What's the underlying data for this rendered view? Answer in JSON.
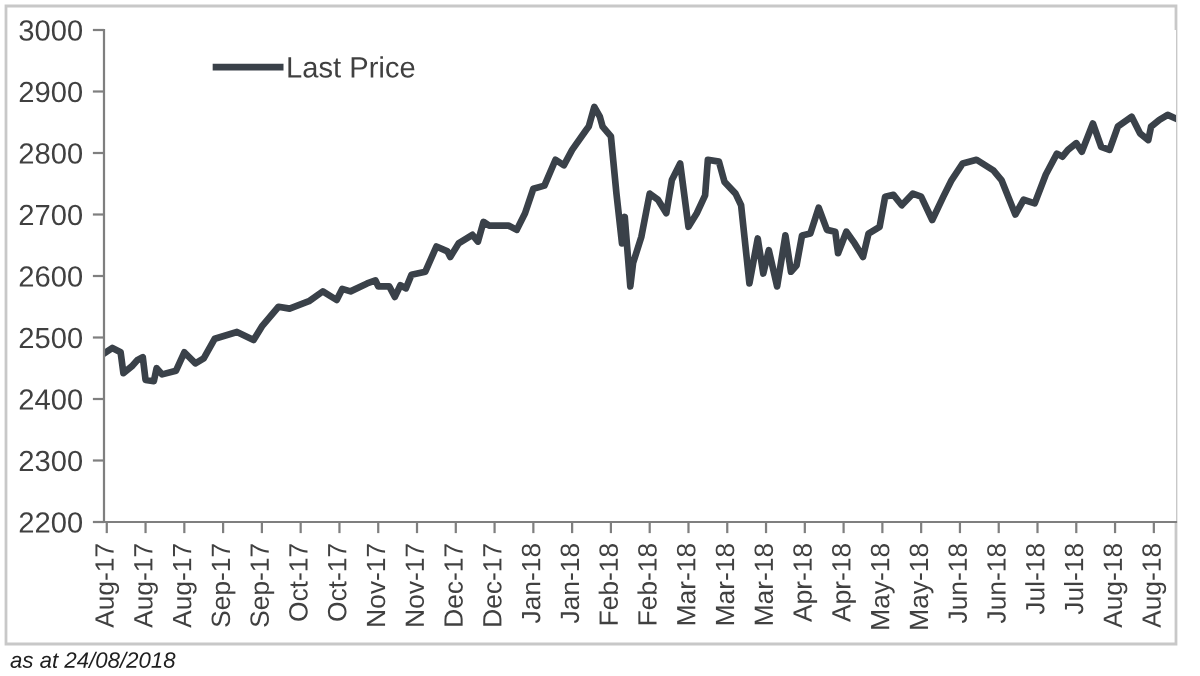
{
  "chart_data": {
    "type": "line",
    "x": [
      "2017-08-02",
      "2017-08-05",
      "2017-08-08",
      "2017-08-09",
      "2017-08-12",
      "2017-08-14",
      "2017-08-16",
      "2017-08-17",
      "2017-08-20",
      "2017-08-21",
      "2017-08-23",
      "2017-08-28",
      "2017-08-31",
      "2017-09-04",
      "2017-09-07",
      "2017-09-11",
      "2017-09-19",
      "2017-09-25",
      "2017-09-28",
      "2017-10-04",
      "2017-10-08",
      "2017-10-15",
      "2017-10-20",
      "2017-10-25",
      "2017-10-27",
      "2017-10-30",
      "2017-11-05",
      "2017-11-08",
      "2017-11-09",
      "2017-11-13",
      "2017-11-15",
      "2017-11-17",
      "2017-11-19",
      "2017-11-21",
      "2017-11-26",
      "2017-11-30",
      "2017-12-04",
      "2017-12-05",
      "2017-12-08",
      "2017-12-13",
      "2017-12-15",
      "2017-12-17",
      "2017-12-19",
      "2017-12-26",
      "2017-12-29",
      "2018-01-01",
      "2018-01-04",
      "2018-01-08",
      "2018-01-12",
      "2018-01-15",
      "2018-01-18",
      "2018-01-23",
      "2018-01-24",
      "2018-01-26",
      "2018-01-28",
      "2018-01-29",
      "2018-02-01",
      "2018-02-03",
      "2018-02-05",
      "2018-02-06",
      "2018-02-08",
      "2018-02-09",
      "2018-02-12",
      "2018-02-15",
      "2018-02-18",
      "2018-02-21",
      "2018-02-23",
      "2018-02-26",
      "2018-03-01",
      "2018-03-04",
      "2018-03-07",
      "2018-03-08",
      "2018-03-12",
      "2018-03-14",
      "2018-03-18",
      "2018-03-20",
      "2018-03-23",
      "2018-03-26",
      "2018-03-28",
      "2018-03-30",
      "2018-04-02",
      "2018-04-05",
      "2018-04-07",
      "2018-04-09",
      "2018-04-11",
      "2018-04-14",
      "2018-04-17",
      "2018-04-20",
      "2018-04-23",
      "2018-04-24",
      "2018-04-27",
      "2018-04-30",
      "2018-05-03",
      "2018-05-05",
      "2018-05-09",
      "2018-05-11",
      "2018-05-14",
      "2018-05-17",
      "2018-05-21",
      "2018-05-24",
      "2018-05-28",
      "2018-06-01",
      "2018-06-04",
      "2018-06-08",
      "2018-06-13",
      "2018-06-19",
      "2018-06-22",
      "2018-06-27",
      "2018-06-30",
      "2018-07-04",
      "2018-07-08",
      "2018-07-12",
      "2018-07-14",
      "2018-07-16",
      "2018-07-19",
      "2018-07-21",
      "2018-07-25",
      "2018-07-28",
      "2018-07-31",
      "2018-08-03",
      "2018-08-08",
      "2018-08-11",
      "2018-08-14",
      "2018-08-15",
      "2018-08-18",
      "2018-08-21",
      "2018-08-24"
    ],
    "series": [
      {
        "name": "Last Price",
        "color": "#3a4149",
        "values": [
          2474,
          2483,
          2476,
          2442,
          2453,
          2463,
          2468,
          2431,
          2429,
          2450,
          2440,
          2446,
          2476,
          2458,
          2466,
          2498,
          2509,
          2496,
          2518,
          2550,
          2547,
          2559,
          2575,
          2561,
          2579,
          2575,
          2588,
          2593,
          2583,
          2583,
          2566,
          2585,
          2580,
          2602,
          2607,
          2648,
          2640,
          2631,
          2653,
          2667,
          2656,
          2688,
          2682,
          2682,
          2675,
          2702,
          2742,
          2747,
          2789,
          2780,
          2805,
          2837,
          2843,
          2875,
          2859,
          2843,
          2827,
          2734,
          2653,
          2696,
          2583,
          2621,
          2664,
          2734,
          2724,
          2702,
          2756,
          2783,
          2680,
          2702,
          2731,
          2789,
          2786,
          2753,
          2734,
          2715,
          2588,
          2661,
          2604,
          2642,
          2583,
          2666,
          2607,
          2617,
          2666,
          2669,
          2711,
          2675,
          2672,
          2637,
          2672,
          2653,
          2631,
          2669,
          2680,
          2729,
          2732,
          2715,
          2734,
          2729,
          2691,
          2729,
          2756,
          2783,
          2789,
          2772,
          2756,
          2700,
          2724,
          2718,
          2765,
          2799,
          2794,
          2805,
          2816,
          2802,
          2848,
          2810,
          2805,
          2843,
          2859,
          2832,
          2821,
          2843,
          2854,
          2862,
          2856
        ]
      }
    ],
    "xlim": [
      "2017-08-02",
      "2018-08-24"
    ],
    "xticks": [
      {
        "value": "2017-08-03",
        "label": "Aug-17"
      },
      {
        "value": "2017-08-17",
        "label": "Aug-17"
      },
      {
        "value": "2017-08-31",
        "label": "Aug-17"
      },
      {
        "value": "2017-09-14",
        "label": "Sep-17"
      },
      {
        "value": "2017-09-28",
        "label": "Sep-17"
      },
      {
        "value": "2017-10-12",
        "label": "Oct-17"
      },
      {
        "value": "2017-10-26",
        "label": "Oct-17"
      },
      {
        "value": "2017-11-09",
        "label": "Nov-17"
      },
      {
        "value": "2017-11-23",
        "label": "Nov-17"
      },
      {
        "value": "2017-12-07",
        "label": "Dec-17"
      },
      {
        "value": "2017-12-21",
        "label": "Dec-17"
      },
      {
        "value": "2018-01-04",
        "label": "Jan-18"
      },
      {
        "value": "2018-01-18",
        "label": "Jan-18"
      },
      {
        "value": "2018-02-01",
        "label": "Feb-18"
      },
      {
        "value": "2018-02-15",
        "label": "Feb-18"
      },
      {
        "value": "2018-03-01",
        "label": "Mar-18"
      },
      {
        "value": "2018-03-15",
        "label": "Mar-18"
      },
      {
        "value": "2018-03-29",
        "label": "Mar-18"
      },
      {
        "value": "2018-04-12",
        "label": "Apr-18"
      },
      {
        "value": "2018-04-26",
        "label": "Apr-18"
      },
      {
        "value": "2018-05-10",
        "label": "May-18"
      },
      {
        "value": "2018-05-24",
        "label": "May-18"
      },
      {
        "value": "2018-06-07",
        "label": "Jun-18"
      },
      {
        "value": "2018-06-21",
        "label": "Jun-18"
      },
      {
        "value": "2018-07-05",
        "label": "Jul-18"
      },
      {
        "value": "2018-07-19",
        "label": "Jul-18"
      },
      {
        "value": "2018-08-02",
        "label": "Aug-18"
      },
      {
        "value": "2018-08-16",
        "label": "Aug-18"
      }
    ],
    "ylim": [
      2200,
      3000
    ],
    "yticks": [
      2200,
      2300,
      2400,
      2500,
      2600,
      2700,
      2800,
      2900,
      3000
    ],
    "legend": "top left",
    "marker": "none",
    "line_style": "solid",
    "annotations": [
      "as at 24/08/2018"
    ]
  }
}
